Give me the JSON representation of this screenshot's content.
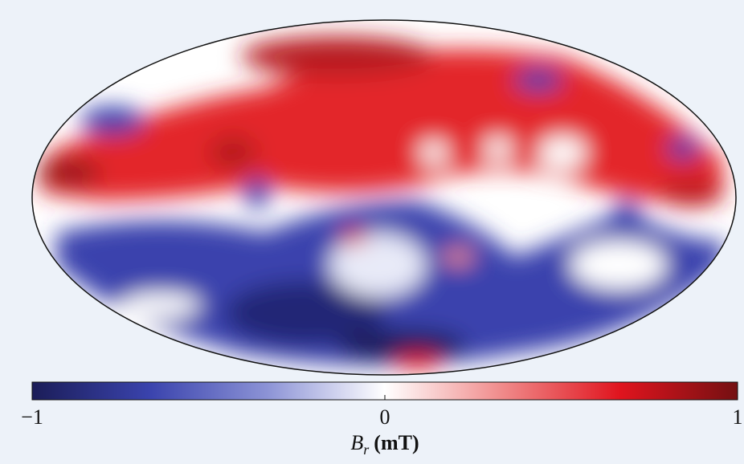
{
  "chart_data": {
    "type": "map",
    "colormap": [
      "#1b1d58",
      "#3a43ad",
      "#8c93d6",
      "#ffffff",
      "#f08a8a",
      "#e0141e",
      "#741012"
    ],
    "clim": [
      -1,
      1
    ],
    "cticks": [
      {
        "value": -1,
        "label": "−1"
      },
      0,
      1
    ],
    "colorbar_label": {
      "symbol": "B",
      "subscript": "r",
      "unit": "(mT)"
    }
  }
}
